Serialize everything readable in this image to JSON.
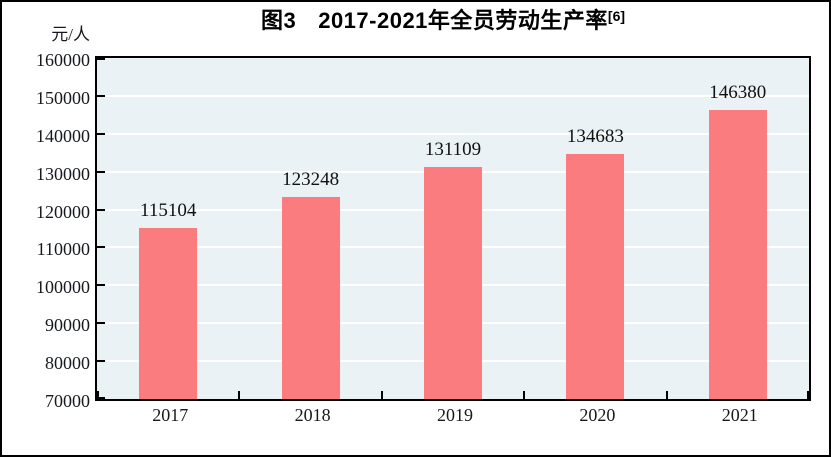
{
  "chart_data": {
    "type": "bar",
    "title": {
      "prefix": "图3",
      "main": "2017-2021年全员劳动生产率",
      "superscript": "[6]"
    },
    "unit_label": "元/人",
    "categories": [
      "2017",
      "2018",
      "2019",
      "2020",
      "2021"
    ],
    "values": [
      115104,
      123248,
      131109,
      134683,
      146380
    ],
    "ylim": [
      70000,
      160000
    ],
    "y_tick_step": 10000,
    "y_ticks": [
      70000,
      80000,
      90000,
      100000,
      110000,
      120000,
      130000,
      140000,
      150000,
      160000
    ],
    "grid": true,
    "legend": "none",
    "colors": {
      "bar": "#fb7c7f",
      "plot_background": "#ebf2f6",
      "gridline": "#ffffff",
      "axis": "#000000",
      "figure_border": "#000000",
      "text": "#16191d"
    }
  }
}
